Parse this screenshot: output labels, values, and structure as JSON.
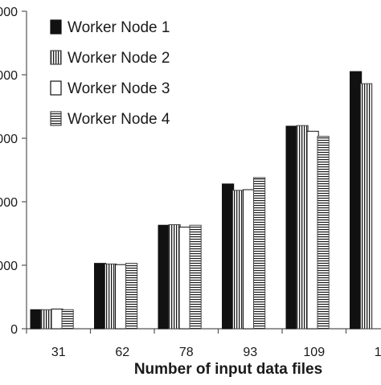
{
  "chart_data": {
    "type": "bar",
    "title": "",
    "xlabel": "Number of input data files",
    "ylabel": "",
    "categories": [
      "31",
      "62",
      "78",
      "93",
      "109",
      "1"
    ],
    "y_tick_labels": [
      "0",
      "000",
      "000",
      "000",
      "000",
      "000"
    ],
    "ylim": [
      0,
      5
    ],
    "grid": false,
    "legend_position": "top-left",
    "series": [
      {
        "name": "Worker Node 1",
        "pattern": "solid-black",
        "values": [
          0.3,
          1.03,
          1.63,
          2.28,
          3.19,
          4.05
        ]
      },
      {
        "name": "Worker Node 2",
        "pattern": "vertical-lines",
        "values": [
          0.3,
          1.02,
          1.64,
          2.18,
          3.2,
          3.86
        ]
      },
      {
        "name": "Worker Node 3",
        "pattern": "hollow",
        "values": [
          0.31,
          1.01,
          1.6,
          2.19,
          3.11,
          null
        ]
      },
      {
        "name": "Worker Node 4",
        "pattern": "horizontal-lines",
        "values": [
          0.3,
          1.03,
          1.63,
          2.38,
          3.03,
          null
        ]
      }
    ]
  }
}
